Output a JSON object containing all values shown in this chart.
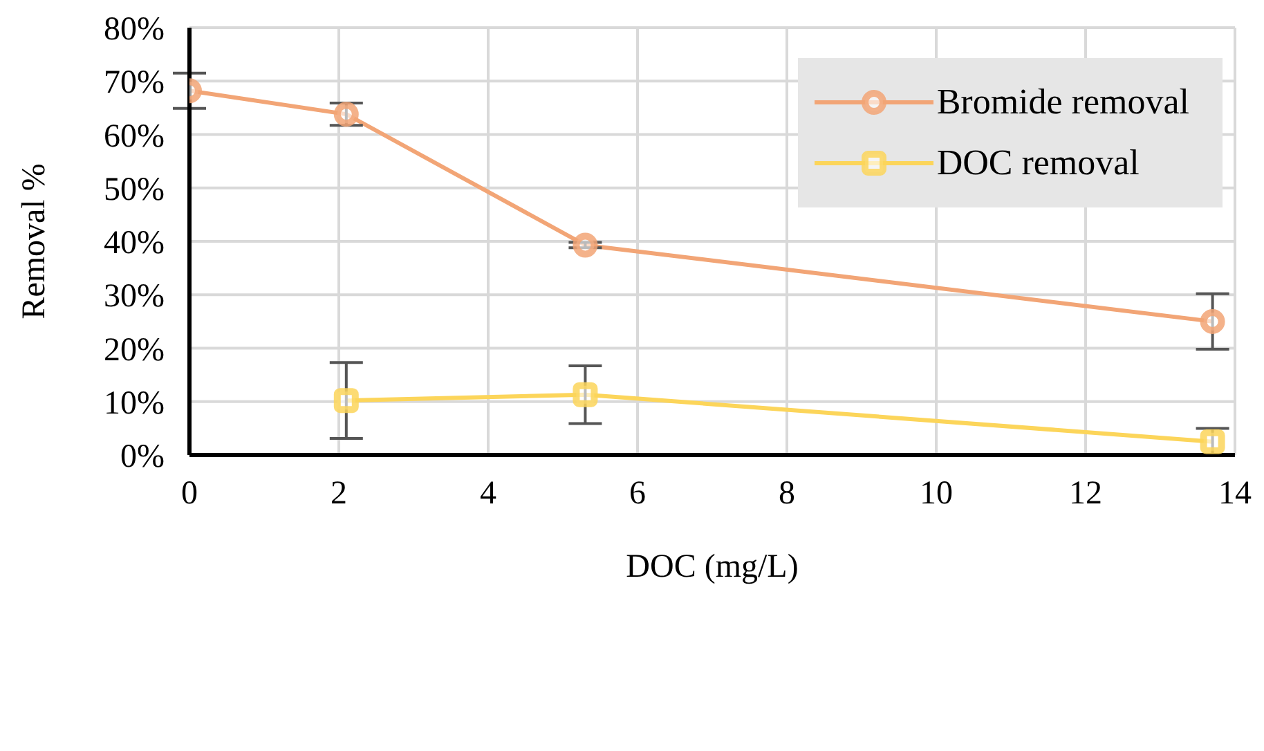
{
  "chart_data": {
    "type": "line",
    "xlabel": "DOC (mg/L)",
    "ylabel": "Removal %",
    "series": [
      {
        "name": "Bromide removal",
        "color": "#f2a576",
        "marker": "circle",
        "x": [
          0,
          2.1,
          5.3,
          13.7
        ],
        "values": [
          68.2,
          63.8,
          39.3,
          25.0
        ],
        "errors": [
          3.3,
          2.1,
          0.5,
          5.2
        ]
      },
      {
        "name": "DOC removal",
        "color": "#fcd55a",
        "marker": "square",
        "x": [
          2.1,
          5.3,
          13.7
        ],
        "values": [
          10.2,
          11.3,
          2.5
        ],
        "errors": [
          7.1,
          5.4,
          2.5
        ]
      }
    ],
    "xlim": [
      0,
      14
    ],
    "xticks": [
      0,
      2,
      4,
      6,
      8,
      10,
      12,
      14
    ],
    "ylim": [
      0,
      80
    ],
    "yticks": [
      {
        "value": 0,
        "label": "0%"
      },
      {
        "value": 10,
        "label": "10%"
      },
      {
        "value": 20,
        "label": "20%"
      },
      {
        "value": 30,
        "label": "30%"
      },
      {
        "value": 40,
        "label": "40%"
      },
      {
        "value": 50,
        "label": "50%"
      },
      {
        "value": 60,
        "label": "60%"
      },
      {
        "value": 70,
        "label": "70%"
      },
      {
        "value": 80,
        "label": "80%"
      }
    ],
    "grid": true,
    "legend": "top right",
    "line_style": "solid"
  }
}
